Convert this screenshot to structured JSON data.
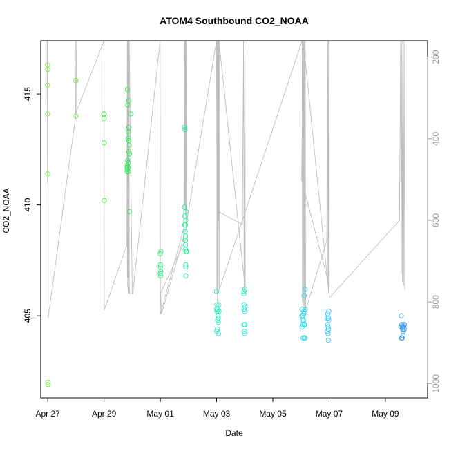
{
  "chart_data": {
    "type": "scatter",
    "title": "ATOM4 Southbound CO2_NOAA",
    "xlabel": "Date",
    "ylabel": "CO2_NOAA",
    "x_is_date": true,
    "xlim": [
      "2018-04-26T18:00",
      "2018-05-10T12:00"
    ],
    "ylim": [
      401.3,
      417.4
    ],
    "x_ticks": [
      {
        "date": "2018-04-27",
        "label": "Apr 27"
      },
      {
        "date": "2018-04-29",
        "label": "Apr 29"
      },
      {
        "date": "2018-05-01",
        "label": "May 01"
      },
      {
        "date": "2018-05-03",
        "label": "May 03"
      },
      {
        "date": "2018-05-05",
        "label": "May 05"
      },
      {
        "date": "2018-05-07",
        "label": "May 07"
      },
      {
        "date": "2018-05-09",
        "label": "May 09"
      }
    ],
    "y_ticks": [
      {
        "value": 405,
        "label": "405"
      },
      {
        "value": 410,
        "label": "410"
      },
      {
        "value": 415,
        "label": "415"
      }
    ],
    "secondary_axis": {
      "side": "right",
      "reversed": true,
      "ylim": [
        1035,
        160
      ],
      "color": "#999999",
      "ticks": [
        {
          "value": 200,
          "label": "200"
        },
        {
          "value": 400,
          "label": "400"
        },
        {
          "value": 600,
          "label": "600"
        },
        {
          "value": 800,
          "label": "800"
        },
        {
          "value": 1000,
          "label": "1000"
        }
      ]
    },
    "grid": false,
    "color_scale": [
      "#7FEF3A",
      "#33EE33",
      "#1FEE8A",
      "#22EECC",
      "#22DDEE",
      "#44AAEE",
      "#3388EE"
    ],
    "series": [
      {
        "role": "points",
        "points": [
          [
            "2018-04-26T23:50",
            416.3
          ],
          [
            "2018-04-26T23:55",
            416.1
          ],
          [
            "2018-04-26T23:45",
            415.4
          ],
          [
            "2018-04-26T23:50",
            414.1
          ],
          [
            "2018-04-26T23:55",
            411.4
          ],
          [
            "2018-04-27T00:05",
            402.0
          ],
          [
            "2018-04-27T00:10",
            401.9
          ],
          [
            "2018-04-27T23:55",
            415.6
          ],
          [
            "2018-04-28T00:00",
            414.0
          ],
          [
            "2018-04-28T23:50",
            414.1
          ],
          [
            "2018-04-28T23:55",
            414.1
          ],
          [
            "2018-04-29T00:00",
            413.9
          ],
          [
            "2018-04-29T00:00",
            412.8
          ],
          [
            "2018-04-29T00:05",
            410.2
          ],
          [
            "2018-04-29T19:55",
            415.2
          ],
          [
            "2018-04-29T21:00",
            414.7
          ],
          [
            "2018-04-29T20:10",
            414.5
          ],
          [
            "2018-04-29T22:40",
            414.1
          ],
          [
            "2018-04-29T21:00",
            413.5
          ],
          [
            "2018-04-29T20:35",
            413.3
          ],
          [
            "2018-04-29T20:40",
            413.0
          ],
          [
            "2018-04-29T21:10",
            412.9
          ],
          [
            "2018-04-29T21:30",
            412.7
          ],
          [
            "2018-04-29T21:00",
            412.4
          ],
          [
            "2018-04-29T21:45",
            412.3
          ],
          [
            "2018-04-29T20:10",
            412.0
          ],
          [
            "2018-04-29T20:35",
            411.9
          ],
          [
            "2018-04-29T19:50",
            411.8
          ],
          [
            "2018-04-29T19:40",
            411.7
          ],
          [
            "2018-04-29T20:25",
            411.7
          ],
          [
            "2018-04-29T19:50",
            411.6
          ],
          [
            "2018-04-29T20:40",
            411.5
          ],
          [
            "2018-04-29T19:40",
            411.5
          ],
          [
            "2018-04-29T21:40",
            409.7
          ],
          [
            "2018-04-30T23:55",
            407.8
          ],
          [
            "2018-05-01T00:30",
            407.9
          ],
          [
            "2018-05-01T00:05",
            407.3
          ],
          [
            "2018-05-01T00:10",
            407.2
          ],
          [
            "2018-05-01T00:25",
            407.0
          ],
          [
            "2018-05-01T00:00",
            406.9
          ],
          [
            "2018-05-01T00:15",
            406.8
          ],
          [
            "2018-05-01T20:45",
            413.5
          ],
          [
            "2018-05-01T21:00",
            413.4
          ],
          [
            "2018-05-01T20:40",
            409.9
          ],
          [
            "2018-05-01T21:50",
            409.7
          ],
          [
            "2018-05-01T21:00",
            409.5
          ],
          [
            "2018-05-01T21:45",
            409.3
          ],
          [
            "2018-05-01T21:00",
            409.1
          ],
          [
            "2018-05-01T21:25",
            409.1
          ],
          [
            "2018-05-01T21:10",
            408.8
          ],
          [
            "2018-05-01T21:30",
            408.6
          ],
          [
            "2018-05-01T21:15",
            408.4
          ],
          [
            "2018-05-01T21:30",
            408.4
          ],
          [
            "2018-05-01T21:35",
            408.2
          ],
          [
            "2018-05-01T21:20",
            408.0
          ],
          [
            "2018-05-01T22:00",
            407.9
          ],
          [
            "2018-05-01T22:30",
            407.9
          ],
          [
            "2018-05-01T21:40",
            407.3
          ],
          [
            "2018-05-01T21:45",
            407.2
          ],
          [
            "2018-05-01T21:50",
            406.8
          ],
          [
            "2018-05-03T00:00",
            406.1
          ],
          [
            "2018-05-03T00:15",
            405.5
          ],
          [
            "2018-05-03T02:00",
            405.5
          ],
          [
            "2018-05-03T00:05",
            405.3
          ],
          [
            "2018-05-03T01:00",
            405.3
          ],
          [
            "2018-05-03T02:05",
            405.2
          ],
          [
            "2018-05-03T00:20",
            405.2
          ],
          [
            "2018-05-03T01:15",
            405.0
          ],
          [
            "2018-05-03T01:30",
            404.9
          ],
          [
            "2018-05-03T00:50",
            404.8
          ],
          [
            "2018-05-03T01:30",
            404.7
          ],
          [
            "2018-05-03T00:40",
            404.4
          ],
          [
            "2018-05-03T00:10",
            404.3
          ],
          [
            "2018-05-03T01:40",
            404.2
          ],
          [
            "2018-05-03T23:25",
            406.1
          ],
          [
            "2018-05-04T00:10",
            406.2
          ],
          [
            "2018-05-03T23:20",
            406.0
          ],
          [
            "2018-05-03T23:25",
            405.5
          ],
          [
            "2018-05-04T00:10",
            405.4
          ],
          [
            "2018-05-03T23:30",
            405.3
          ],
          [
            "2018-05-04T00:00",
            405.2
          ],
          [
            "2018-05-03T23:20",
            404.6
          ],
          [
            "2018-05-04T00:10",
            404.6
          ],
          [
            "2018-05-03T23:45",
            404.3
          ],
          [
            "2018-05-04T00:00",
            404.2
          ],
          [
            "2018-05-06T03:30",
            406.2
          ],
          [
            "2018-05-06T02:40",
            405.9
          ],
          [
            "2018-05-06T01:00",
            405.3
          ],
          [
            "2018-05-06T02:30",
            405.2
          ],
          [
            "2018-05-06T03:40",
            405.3
          ],
          [
            "2018-05-06T00:50",
            405.0
          ],
          [
            "2018-05-06T02:20",
            405.1
          ],
          [
            "2018-05-06T01:50",
            405.0
          ],
          [
            "2018-05-06T01:15",
            404.8
          ],
          [
            "2018-05-06T02:10",
            404.8
          ],
          [
            "2018-05-06T01:30",
            404.6
          ],
          [
            "2018-05-06T02:40",
            404.6
          ],
          [
            "2018-05-06T01:00",
            404.5
          ],
          [
            "2018-05-06T03:10",
            404.6
          ],
          [
            "2018-05-06T01:50",
            404.0
          ],
          [
            "2018-05-06T02:40",
            404.0
          ],
          [
            "2018-05-06T03:30",
            404.0
          ],
          [
            "2018-05-06T22:50",
            405.1
          ],
          [
            "2018-05-06T23:40",
            405.2
          ],
          [
            "2018-05-06T22:20",
            404.9
          ],
          [
            "2018-05-06T23:20",
            404.9
          ],
          [
            "2018-05-06T23:40",
            404.8
          ],
          [
            "2018-05-06T22:40",
            404.6
          ],
          [
            "2018-05-06T23:10",
            404.5
          ],
          [
            "2018-05-06T23:30",
            404.4
          ],
          [
            "2018-05-06T22:30",
            404.3
          ],
          [
            "2018-05-06T23:00",
            404.2
          ],
          [
            "2018-05-06T23:20",
            403.9
          ],
          [
            "2018-05-09T13:30",
            405.0
          ],
          [
            "2018-05-09T14:00",
            404.6
          ],
          [
            "2018-05-09T15:10",
            404.6
          ],
          [
            "2018-05-09T16:10",
            404.6
          ],
          [
            "2018-05-09T14:30",
            404.5
          ],
          [
            "2018-05-09T15:40",
            404.5
          ],
          [
            "2018-05-09T13:10",
            404.5
          ],
          [
            "2018-05-09T16:00",
            404.4
          ],
          [
            "2018-05-09T14:40",
            404.4
          ],
          [
            "2018-05-09T15:20",
            404.3
          ],
          [
            "2018-05-09T13:50",
            404.0
          ],
          [
            "2018-05-09T14:20",
            404.0
          ],
          [
            "2018-05-09T15:10",
            404.1
          ]
        ]
      },
      {
        "role": "altitude_track",
        "axis": "secondary",
        "color": "#BEBEBE",
        "points": [
          [
            "2018-04-26T23:30",
            158
          ],
          [
            "2018-04-26T23:45",
            510
          ],
          [
            "2018-04-27T00:00",
            160
          ],
          [
            "2018-04-27T00:15",
            840
          ],
          [
            "2018-04-28T00:00",
            340
          ],
          [
            "2018-04-28T00:30",
            160
          ],
          [
            "2018-04-27T23:30",
            160
          ],
          [
            "2018-04-27T23:30",
            340
          ],
          [
            "2018-04-29T00:00",
            160
          ],
          [
            "2018-04-29T00:10",
            820
          ],
          [
            "2018-04-29T19:30",
            660
          ],
          [
            "2018-04-29T19:45",
            160
          ],
          [
            "2018-04-29T19:50",
            740
          ],
          [
            "2018-04-29T20:00",
            160
          ],
          [
            "2018-04-29T20:05",
            740
          ],
          [
            "2018-04-29T20:10",
            160
          ],
          [
            "2018-04-29T20:20",
            740
          ],
          [
            "2018-04-29T20:30",
            160
          ],
          [
            "2018-04-29T20:40",
            740
          ],
          [
            "2018-04-29T20:50",
            160
          ],
          [
            "2018-04-29T21:10",
            780
          ],
          [
            "2018-04-29T21:20",
            160
          ],
          [
            "2018-04-29T21:30",
            760
          ],
          [
            "2018-04-29T21:50",
            780
          ],
          [
            "2018-04-29T20:00",
            760
          ],
          [
            "2018-04-29T21:30",
            160
          ],
          [
            "2018-04-30T00:00",
            780
          ],
          [
            "2018-04-30T00:30",
            780
          ],
          [
            "2018-04-30T23:50",
            160
          ],
          [
            "2018-05-01T00:05",
            830
          ],
          [
            "2018-05-01T20:00",
            620
          ],
          [
            "2018-05-01T20:40",
            160
          ],
          [
            "2018-05-01T20:45",
            560
          ],
          [
            "2018-05-01T20:55",
            160
          ],
          [
            "2018-05-01T21:05",
            570
          ],
          [
            "2018-05-01T21:15",
            160
          ],
          [
            "2018-05-01T21:25",
            580
          ],
          [
            "2018-05-01T21:35",
            160
          ],
          [
            "2018-05-01T21:50",
            620
          ],
          [
            "2018-05-01T22:10",
            160
          ],
          [
            "2018-05-01T22:30",
            640
          ],
          [
            "2018-05-01T00:00",
            780
          ],
          [
            "2018-05-01T00:15",
            780
          ],
          [
            "2018-05-01T01:00",
            830
          ],
          [
            "2018-05-01T21:00",
            630
          ],
          [
            "2018-05-03T00:00",
            160
          ],
          [
            "2018-05-03T00:20",
            780
          ],
          [
            "2018-05-03T00:30",
            160
          ],
          [
            "2018-05-03T00:45",
            800
          ],
          [
            "2018-05-03T01:00",
            160
          ],
          [
            "2018-05-03T01:20",
            780
          ],
          [
            "2018-05-03T01:40",
            160
          ],
          [
            "2018-05-03T02:00",
            600
          ],
          [
            "2018-05-03T02:30",
            580
          ],
          [
            "2018-05-03T22:00",
            610
          ],
          [
            "2018-05-03T23:00",
            160
          ],
          [
            "2018-05-03T23:30",
            780
          ],
          [
            "2018-05-04T00:10",
            160
          ],
          [
            "2018-05-04T00:30",
            770
          ],
          [
            "2018-05-03T02:00",
            160
          ],
          [
            "2018-05-03T02:10",
            620
          ],
          [
            "2018-05-03T02:15",
            160
          ],
          [
            "2018-05-03T02:20",
            770
          ],
          [
            "2018-05-06T01:00",
            160
          ],
          [
            "2018-05-06T01:15",
            800
          ],
          [
            "2018-05-06T01:30",
            160
          ],
          [
            "2018-05-06T01:50",
            830
          ],
          [
            "2018-05-06T02:10",
            160
          ],
          [
            "2018-05-06T02:30",
            810
          ],
          [
            "2018-05-06T02:50",
            160
          ],
          [
            "2018-05-06T03:10",
            820
          ],
          [
            "2018-05-06T03:40",
            160
          ],
          [
            "2018-05-06T04:00",
            820
          ],
          [
            "2018-05-06T22:00",
            650
          ],
          [
            "2018-05-06T22:40",
            160
          ],
          [
            "2018-05-06T23:00",
            760
          ],
          [
            "2018-05-06T23:20",
            160
          ],
          [
            "2018-05-06T23:40",
            780
          ],
          [
            "2018-05-07T00:00",
            160
          ],
          [
            "2018-05-07T00:10",
            760
          ],
          [
            "2018-05-06T00:30",
            500
          ],
          [
            "2018-05-06T02:00",
            160
          ],
          [
            "2018-05-07T00:10",
            790
          ],
          [
            "2018-05-09T12:00",
            600
          ],
          [
            "2018-05-09T13:00",
            160
          ],
          [
            "2018-05-09T13:30",
            730
          ],
          [
            "2018-05-09T14:00",
            160
          ],
          [
            "2018-05-09T14:30",
            750
          ],
          [
            "2018-05-09T15:00",
            160
          ],
          [
            "2018-05-09T15:30",
            760
          ],
          [
            "2018-05-09T16:00",
            160
          ],
          [
            "2018-05-09T16:30",
            770
          ]
        ]
      }
    ]
  }
}
